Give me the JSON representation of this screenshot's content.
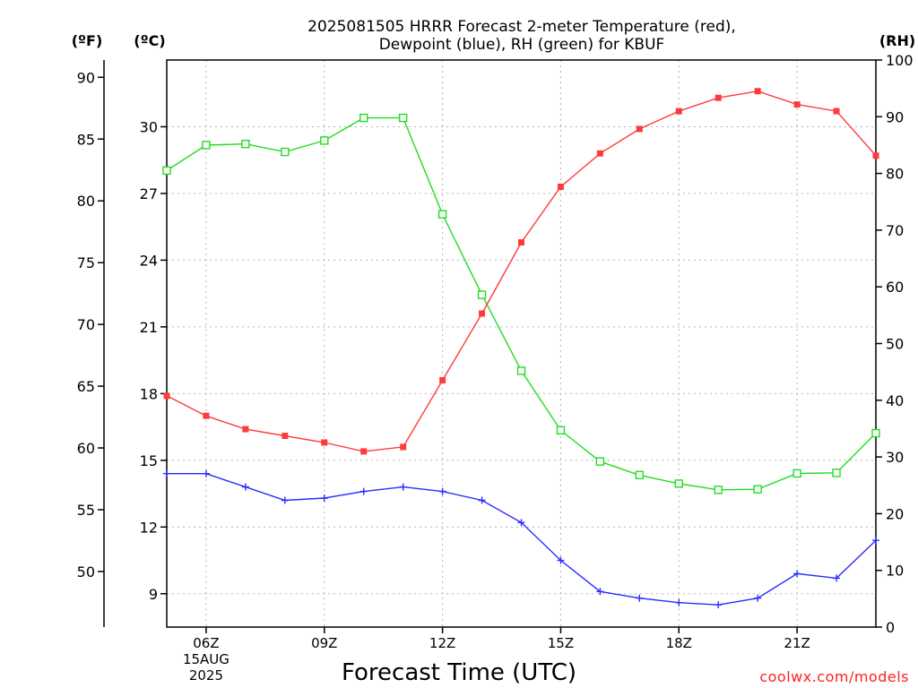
{
  "chart_data": {
    "type": "line",
    "title_lines": [
      "2025081505 HRRR Forecast 2-meter Temperature (red),",
      "Dewpoint (blue), RH (green) for KBUF"
    ],
    "units": {
      "fahrenheit": "(ºF)",
      "celsius": "(ºC)",
      "rh": "(RH)"
    },
    "xlabel": "Forecast Time (UTC)",
    "credit": "coolwx.com/models",
    "x_hours": [
      5,
      6,
      7,
      8,
      9,
      10,
      11,
      12,
      13,
      14,
      15,
      16,
      17,
      18,
      19,
      20,
      21,
      22,
      23
    ],
    "xlim": [
      5,
      23
    ],
    "x_ticks": [
      {
        "hour": 6,
        "label": "06Z",
        "sublabels": [
          "15AUG",
          "2025"
        ]
      },
      {
        "hour": 9,
        "label": "09Z"
      },
      {
        "hour": 12,
        "label": "12Z"
      },
      {
        "hour": 15,
        "label": "15Z"
      },
      {
        "hour": 18,
        "label": "18Z"
      },
      {
        "hour": 21,
        "label": "21Z"
      }
    ],
    "y_celsius": {
      "lim": [
        7.5,
        33.0
      ],
      "ticks": [
        "9",
        "12",
        "15",
        "18",
        "21",
        "24",
        "27",
        "30"
      ]
    },
    "y_fahrenheit": {
      "lim": [
        45.5,
        91.4
      ],
      "ticks": [
        "50",
        "55",
        "60",
        "65",
        "70",
        "75",
        "80",
        "85",
        "90"
      ]
    },
    "y_rh": {
      "lim": [
        0,
        100
      ],
      "ticks": [
        "0",
        "10",
        "20",
        "30",
        "40",
        "50",
        "60",
        "70",
        "80",
        "90",
        "100"
      ]
    },
    "grid": true,
    "series": [
      {
        "key": "temperature",
        "color": "#ff3a3a",
        "marker": "filled-square",
        "axis": "celsius",
        "values": [
          17.9,
          17.0,
          16.4,
          16.1,
          15.8,
          15.4,
          15.6,
          18.6,
          21.6,
          24.8,
          27.3,
          28.8,
          29.9,
          30.7,
          31.3,
          31.6,
          31.0,
          30.7,
          28.7
        ]
      },
      {
        "key": "dewpoint",
        "color": "#2b2bff",
        "marker": "plus",
        "axis": "celsius",
        "values": [
          14.4,
          14.4,
          13.8,
          13.2,
          13.3,
          13.6,
          13.8,
          13.6,
          13.2,
          12.2,
          10.5,
          9.1,
          8.8,
          8.6,
          8.5,
          8.8,
          9.9,
          9.7,
          11.4
        ]
      },
      {
        "key": "rh",
        "color": "#22dd22",
        "marker": "open-square",
        "axis": "rh",
        "values": [
          80.5,
          85.0,
          85.2,
          83.8,
          85.8,
          89.8,
          89.8,
          72.8,
          58.6,
          45.2,
          34.7,
          29.2,
          26.8,
          25.3,
          24.2,
          24.3,
          27.1,
          27.2,
          34.2
        ]
      }
    ]
  }
}
